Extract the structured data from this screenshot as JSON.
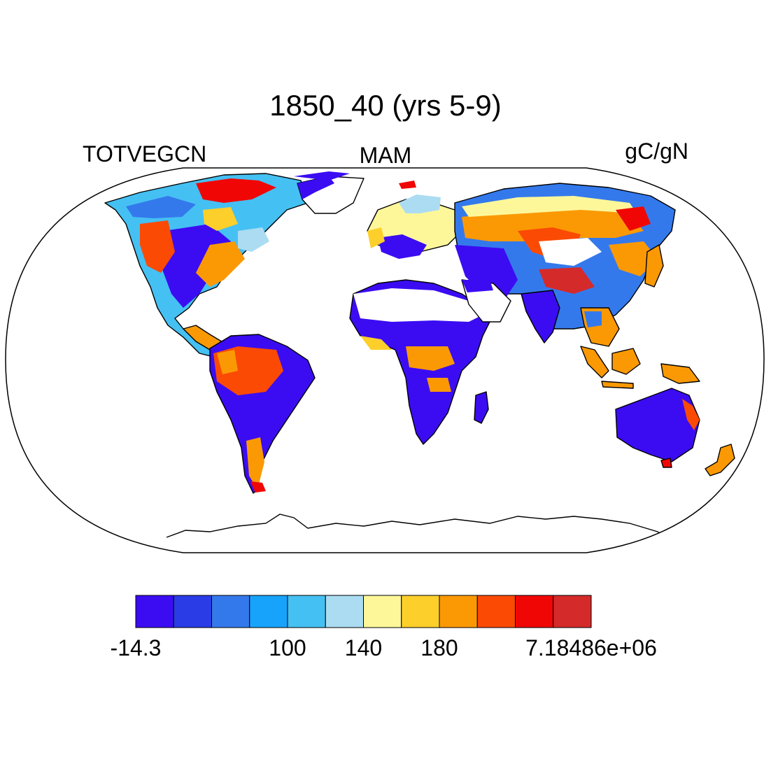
{
  "title": "1850_40 (yrs 5-9)",
  "variable": "TOTVEGCN",
  "season": "MAM",
  "units": "gC/gN",
  "colorbar": {
    "colors": [
      "#3b0cf2",
      "#2a3ce6",
      "#3479ec",
      "#17a3fb",
      "#45c0f3",
      "#abdcf2",
      "#fdf79a",
      "#fdcf2b",
      "#fb9904",
      "#fb4a04",
      "#f00705",
      "#d52a2a"
    ],
    "labels": [
      {
        "text": "-14.3",
        "boundary": 0
      },
      {
        "text": "100",
        "boundary": 4
      },
      {
        "text": "140",
        "boundary": 6
      },
      {
        "text": "180",
        "boundary": 8
      },
      {
        "text": "7.18486e+06",
        "boundary": 12
      }
    ]
  },
  "map": {
    "projection": "robinson",
    "colors": {
      "blue": "#3b0cf2",
      "dblue": "#2a3ce6",
      "mblue": "#3479ec",
      "lblue": "#45c0f3",
      "pale": "#abdcf2",
      "yellow": "#fdf79a",
      "gold": "#fdcf2b",
      "orange": "#fb9904",
      "rorange": "#fb4a04",
      "red": "#f00705",
      "dred": "#d52a2a"
    }
  }
}
